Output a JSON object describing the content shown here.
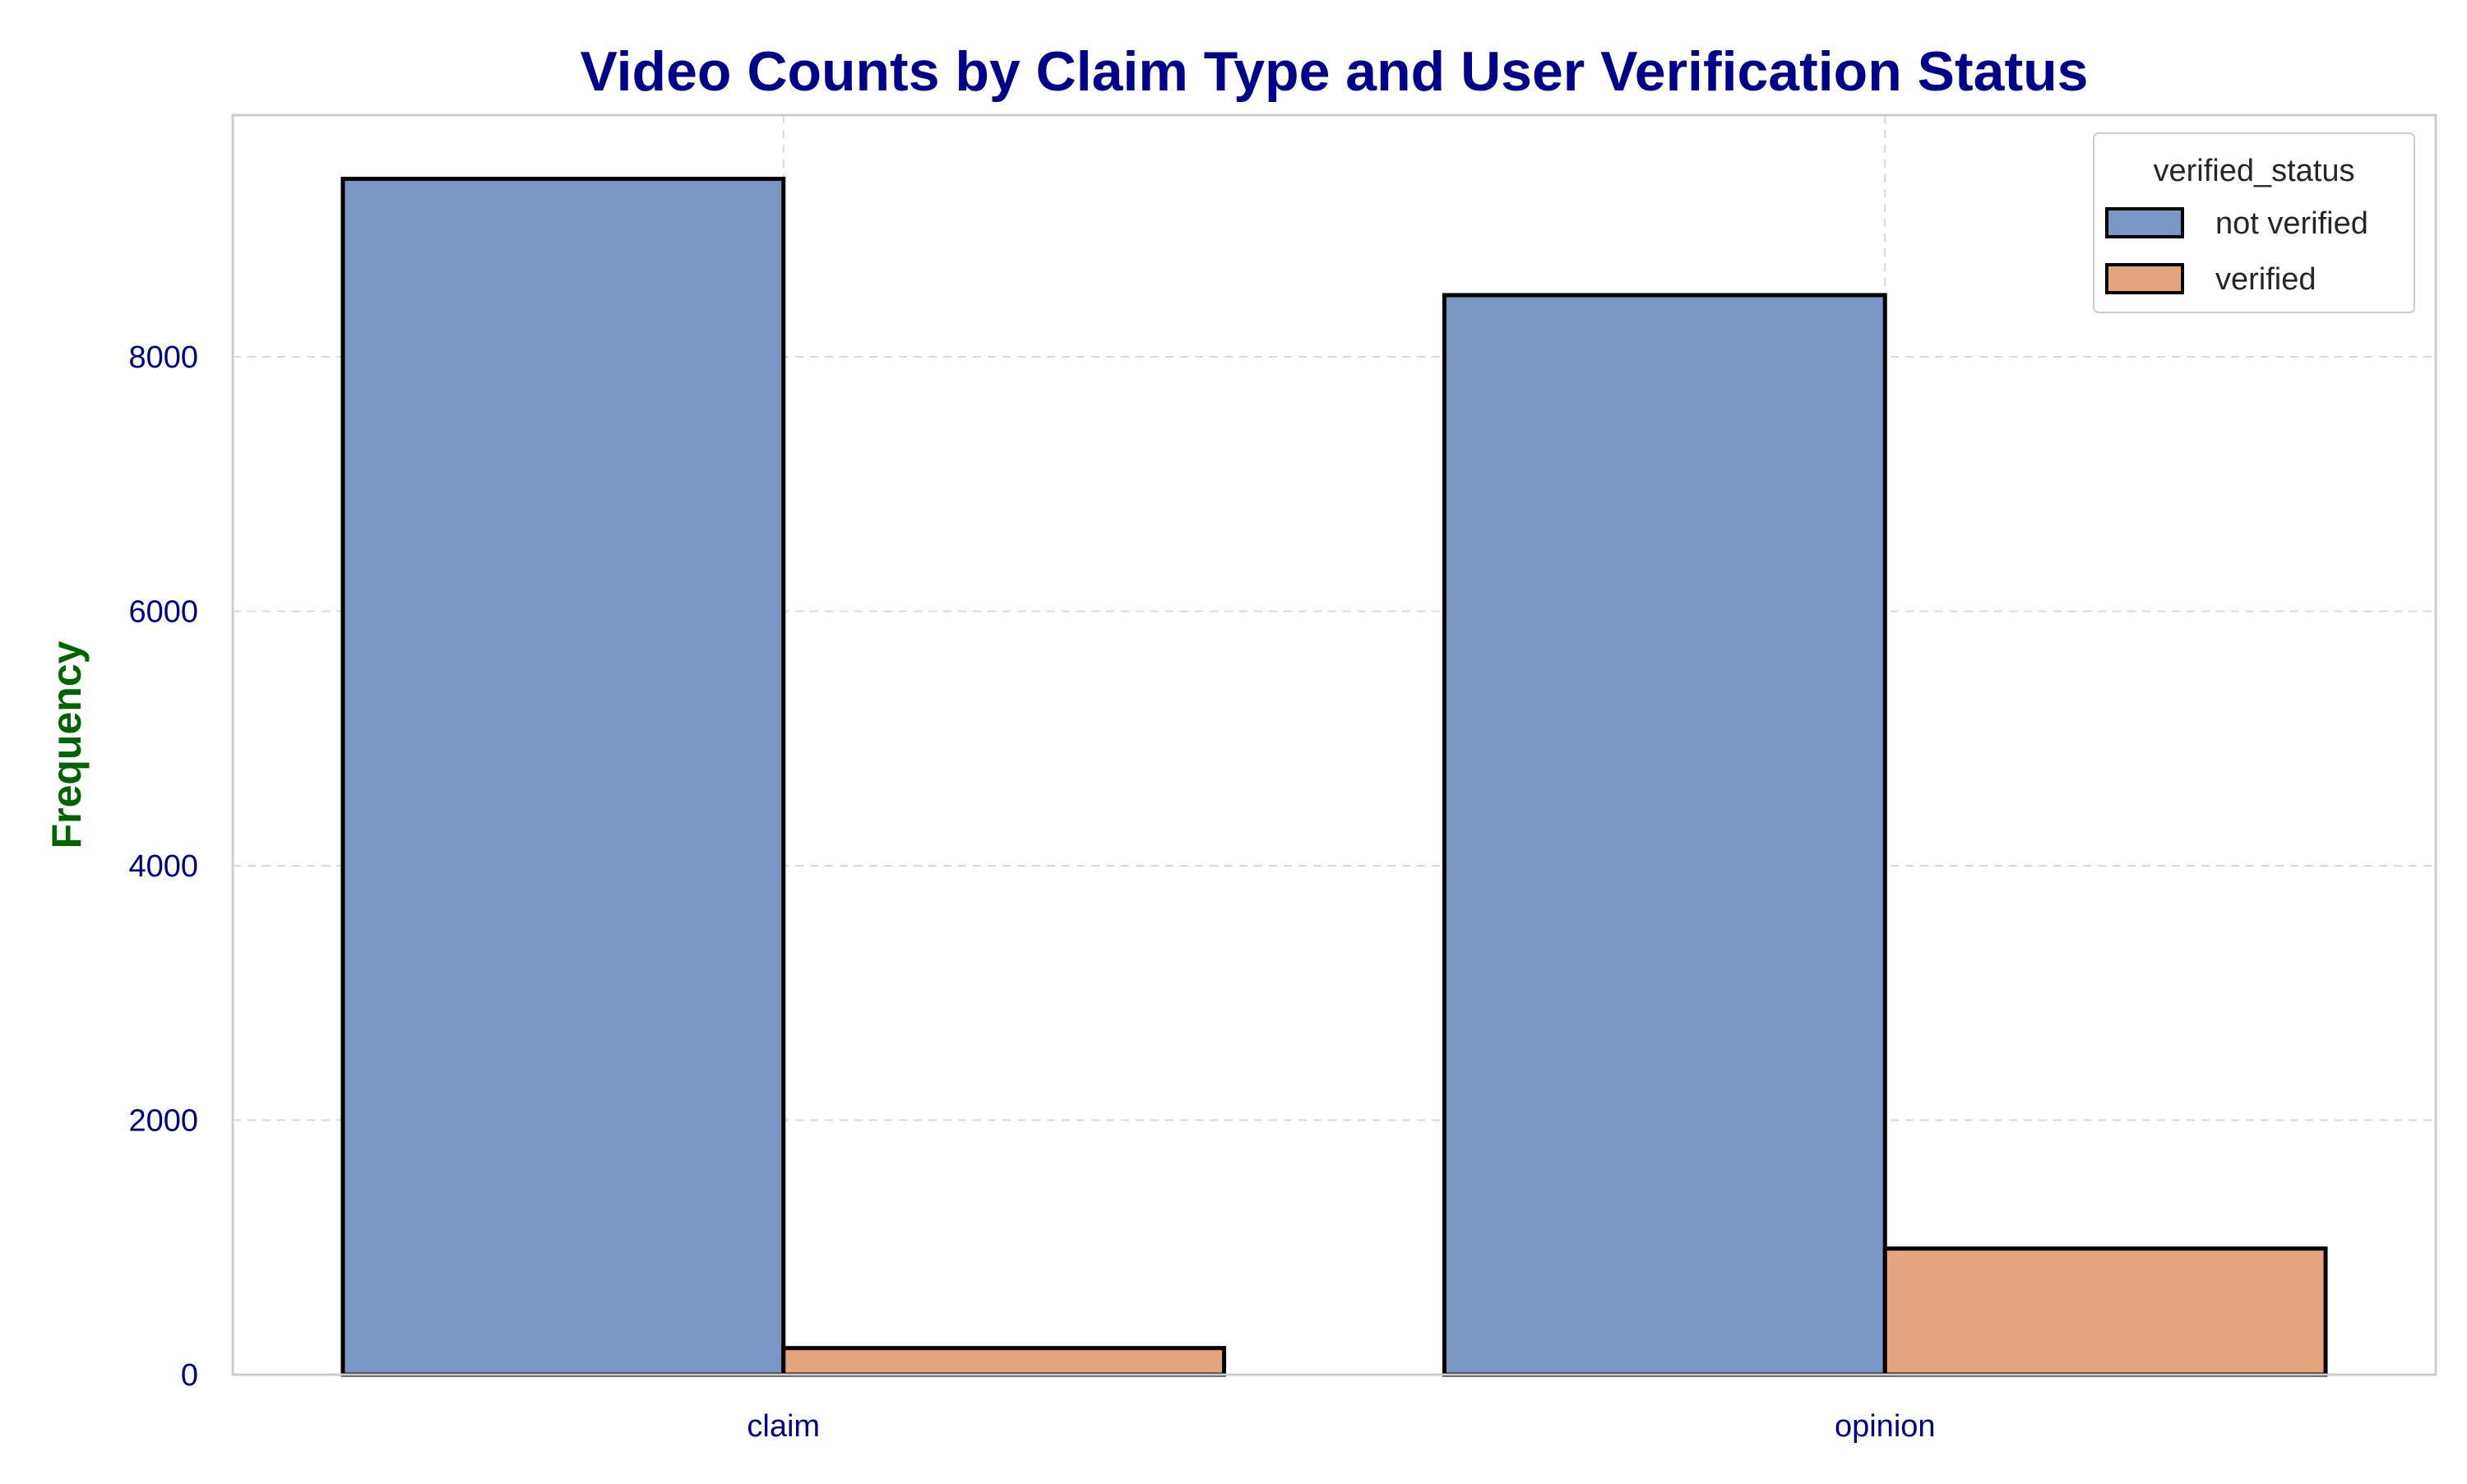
{
  "colors": {
    "title": "#00008b",
    "ylabel": "#006400",
    "ticks": "#00008b",
    "series": [
      "#7a97c4",
      "#e3a47e"
    ],
    "bar_edge": "#000000",
    "grid": "#d9d9d9",
    "frame": "#cccccc"
  },
  "chart_data": {
    "type": "bar",
    "title": "Video Counts by Claim Type and User Verification Status",
    "xlabel": "",
    "ylabel": "Frequency",
    "categories": [
      "claim",
      "opinion"
    ],
    "series": [
      {
        "name": "not verified",
        "values": [
          9399,
          8485
        ]
      },
      {
        "name": "verified",
        "values": [
          209,
          991
        ]
      }
    ],
    "ylim": [
      0,
      9900
    ],
    "yticks": [
      0,
      2000,
      4000,
      6000,
      8000
    ],
    "grid": true,
    "legend": {
      "title": "verified_status",
      "placement": "top-right"
    }
  }
}
